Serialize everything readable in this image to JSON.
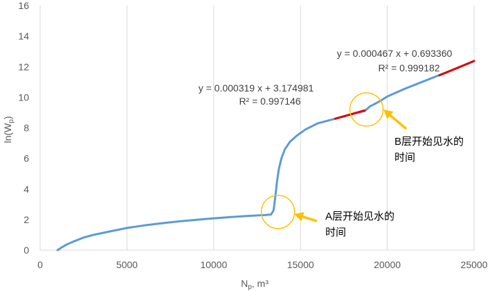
{
  "chart_data": {
    "type": "line",
    "xlabel": {
      "main": "N",
      "sub": "p",
      "rest": ", m³"
    },
    "ylabel": {
      "main": "ln(W",
      "sub": "p",
      "rest": ")"
    },
    "xlim": [
      0,
      25000
    ],
    "ylim": [
      0,
      16
    ],
    "xticks": [
      "0",
      "5000",
      "10000",
      "15000",
      "20000",
      "25000"
    ],
    "yticks": [
      "0",
      "2",
      "4",
      "6",
      "8",
      "10",
      "12",
      "14",
      "16"
    ],
    "grid": {
      "x": true,
      "y": false
    },
    "colors": {
      "curve": "#5b9bd5",
      "fit": "#e00000",
      "marker": "#ffc000",
      "axis": "#d9d9d9"
    },
    "series": [
      {
        "values": [
          {
            "x": 1000,
            "y": 0.0
          },
          {
            "x": 1200,
            "y": 0.15
          },
          {
            "x": 1500,
            "y": 0.35
          },
          {
            "x": 2000,
            "y": 0.6
          },
          {
            "x": 2500,
            "y": 0.82
          },
          {
            "x": 3000,
            "y": 0.98
          },
          {
            "x": 4000,
            "y": 1.22
          },
          {
            "x": 5000,
            "y": 1.45
          },
          {
            "x": 6000,
            "y": 1.62
          },
          {
            "x": 7000,
            "y": 1.76
          },
          {
            "x": 8000,
            "y": 1.88
          },
          {
            "x": 9000,
            "y": 1.98
          },
          {
            "x": 10000,
            "y": 2.08
          },
          {
            "x": 11000,
            "y": 2.16
          },
          {
            "x": 12000,
            "y": 2.24
          },
          {
            "x": 13000,
            "y": 2.3
          },
          {
            "x": 13300,
            "y": 2.33
          },
          {
            "x": 13450,
            "y": 2.6
          },
          {
            "x": 13550,
            "y": 3.5
          },
          {
            "x": 13650,
            "y": 4.5
          },
          {
            "x": 13750,
            "y": 5.3
          },
          {
            "x": 13900,
            "y": 6.0
          },
          {
            "x": 14100,
            "y": 6.6
          },
          {
            "x": 14400,
            "y": 7.1
          },
          {
            "x": 14800,
            "y": 7.5
          },
          {
            "x": 15300,
            "y": 7.9
          },
          {
            "x": 16000,
            "y": 8.3
          },
          {
            "x": 17000,
            "y": 8.6
          },
          {
            "x": 18000,
            "y": 8.9
          },
          {
            "x": 18700,
            "y": 9.1
          },
          {
            "x": 19000,
            "y": 9.4
          },
          {
            "x": 19500,
            "y": 9.7
          },
          {
            "x": 20000,
            "y": 10.05
          },
          {
            "x": 21000,
            "y": 10.55
          },
          {
            "x": 22000,
            "y": 11.0
          },
          {
            "x": 23000,
            "y": 11.45
          },
          {
            "x": 24000,
            "y": 11.9
          },
          {
            "x": 25000,
            "y": 12.38
          }
        ]
      }
    ],
    "fits": [
      {
        "x": [
          17000,
          18700
        ],
        "slope": 0.000319,
        "intercept": 3.174981,
        "equation": "y = 0.000319 x + 3.174981",
        "r2": "R² = 0.997146"
      },
      {
        "x": [
          23000,
          25000
        ],
        "slope": 0.000467,
        "intercept": 0.69336,
        "equation": "y = 0.000467 x + 0.693360",
        "r2": "R² = 0.999182"
      }
    ],
    "annotations": [
      {
        "line1": "A层开始见水的",
        "line2": "时间",
        "circle_at": {
          "x": 13700,
          "y": 2.5
        }
      },
      {
        "line1": "B层开始见水的",
        "line2": "时间",
        "circle_at": {
          "x": 18800,
          "y": 9.2
        }
      }
    ]
  }
}
